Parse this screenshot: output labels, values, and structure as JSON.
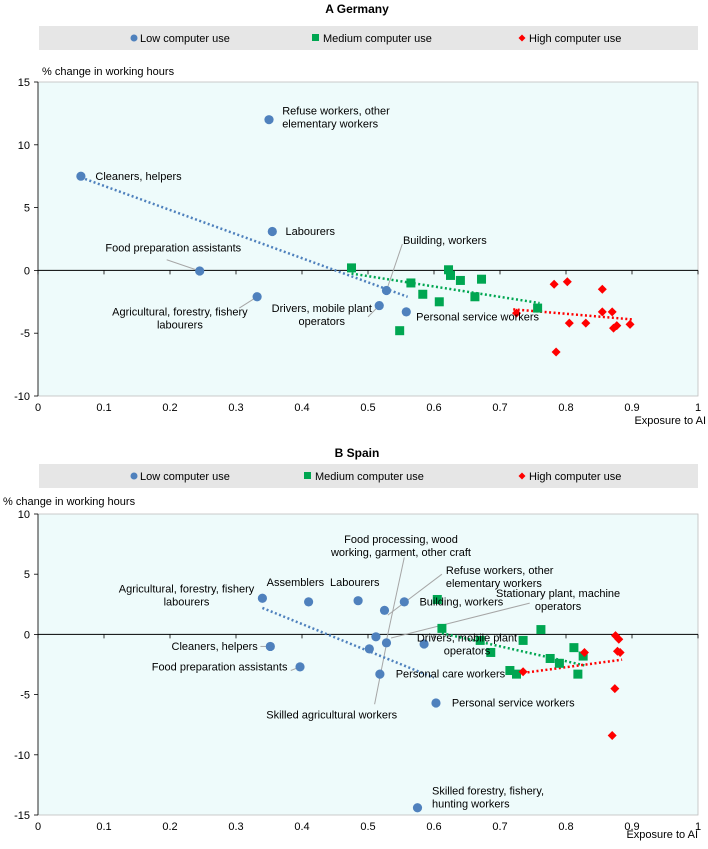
{
  "colors": {
    "low": "#4f81bd",
    "medium": "#00a651",
    "high": "#ff0000",
    "plot_bg": "#eefbfb",
    "legend_bg": "#e6e6e6",
    "leader": "#a6a6a6"
  },
  "legend_labels": {
    "low": "Low computer use",
    "medium": "Medium computer use",
    "high": "High computer use"
  },
  "chart_data": [
    {
      "type": "scatter",
      "panel": "A",
      "title": "A  Germany",
      "ylabel": "% change in working hours",
      "xlabel": "Exposure to AI",
      "xlim": [
        0,
        1
      ],
      "ylim": [
        -10,
        15
      ],
      "xticks": [
        "0",
        "0.1",
        "0.2",
        "0.3",
        "0.4",
        "0.5",
        "0.6",
        "0.7",
        "0.8",
        "0.9",
        "1"
      ],
      "yticks": [
        "15",
        "10",
        "5",
        "0",
        "-5",
        "-10"
      ],
      "series": [
        {
          "name": "Low computer use",
          "group": "low",
          "marker": "circle",
          "points": [
            {
              "x": 0.065,
              "y": 7.5
            },
            {
              "x": 0.35,
              "y": 12.0
            },
            {
              "x": 0.355,
              "y": 3.1
            },
            {
              "x": 0.245,
              "y": -0.05
            },
            {
              "x": 0.332,
              "y": -2.1
            },
            {
              "x": 0.528,
              "y": -1.6
            },
            {
              "x": 0.517,
              "y": -2.8
            },
            {
              "x": 0.558,
              "y": -3.3
            }
          ],
          "trend": [
            [
              0.065,
              7.4
            ],
            [
              0.56,
              -2.1
            ]
          ]
        },
        {
          "name": "Medium computer use",
          "group": "medium",
          "marker": "square",
          "points": [
            {
              "x": 0.475,
              "y": 0.2
            },
            {
              "x": 0.565,
              "y": -1.0
            },
            {
              "x": 0.583,
              "y": -1.9
            },
            {
              "x": 0.608,
              "y": -2.5
            },
            {
              "x": 0.622,
              "y": 0.05
            },
            {
              "x": 0.625,
              "y": -0.4
            },
            {
              "x": 0.64,
              "y": -0.8
            },
            {
              "x": 0.662,
              "y": -2.1
            },
            {
              "x": 0.672,
              "y": -0.7
            },
            {
              "x": 0.548,
              "y": -4.8
            },
            {
              "x": 0.757,
              "y": -3.0
            }
          ],
          "trend": [
            [
              0.475,
              -0.25
            ],
            [
              0.76,
              -2.6
            ]
          ]
        },
        {
          "name": "High computer use",
          "group": "high",
          "marker": "diamond",
          "points": [
            {
              "x": 0.725,
              "y": -3.4
            },
            {
              "x": 0.782,
              "y": -1.1
            },
            {
              "x": 0.802,
              "y": -0.9
            },
            {
              "x": 0.805,
              "y": -4.2
            },
            {
              "x": 0.785,
              "y": -6.5
            },
            {
              "x": 0.83,
              "y": -4.2
            },
            {
              "x": 0.855,
              "y": -1.5
            },
            {
              "x": 0.855,
              "y": -3.3
            },
            {
              "x": 0.87,
              "y": -3.3
            },
            {
              "x": 0.872,
              "y": -4.6
            },
            {
              "x": 0.877,
              "y": -4.4
            },
            {
              "x": 0.897,
              "y": -4.3
            }
          ],
          "trend": [
            [
              0.72,
              -3.1
            ],
            [
              0.9,
              -3.9
            ]
          ]
        }
      ],
      "annotations": [
        {
          "lines": [
            "Refuse workers, other",
            "elementary workers"
          ],
          "anchor": "start",
          "x": 0.37,
          "y": 12.4
        },
        {
          "lines": [
            "Cleaners, helpers"
          ],
          "anchor": "start",
          "x": 0.087,
          "y": 7.2
        },
        {
          "lines": [
            "Labourers"
          ],
          "anchor": "start",
          "x": 0.375,
          "y": 2.8
        },
        {
          "lines": [
            "Food preparation assistants"
          ],
          "anchor": "middle",
          "x": 0.205,
          "y": 1.5
        },
        {
          "lines": [
            "Building, workers"
          ],
          "anchor": "start",
          "x": 0.553,
          "y": 2.1
        },
        {
          "lines": [
            "Agricultural, forestry, fishery",
            "labourers"
          ],
          "anchor": "middle",
          "x": 0.215,
          "y": -3.6
        },
        {
          "lines": [
            "Drivers, mobile plant",
            "operators"
          ],
          "anchor": "middle",
          "x": 0.43,
          "y": -3.3
        },
        {
          "lines": [
            "Personal service workers"
          ],
          "anchor": "start",
          "x": 0.573,
          "y": -4.0
        }
      ],
      "leaders": [
        [
          [
            0.245,
            -0.05
          ],
          [
            0.195,
            0.85
          ]
        ],
        [
          [
            0.332,
            -2.1
          ],
          [
            0.305,
            -3.0
          ]
        ],
        [
          [
            0.528,
            -1.6
          ],
          [
            0.552,
            2.1
          ]
        ],
        [
          [
            0.517,
            -2.8
          ],
          [
            0.5,
            -3.7
          ]
        ]
      ]
    },
    {
      "type": "scatter",
      "panel": "B",
      "title": "B  Spain",
      "ylabel": "% change in working hours",
      "xlabel": "Exposure to AI",
      "xlim": [
        0,
        1
      ],
      "ylim": [
        -15,
        10
      ],
      "xticks": [
        "0",
        "0.1",
        "0.2",
        "0.3",
        "0.4",
        "0.5",
        "0.6",
        "0.7",
        "0.8",
        "0.9",
        "1"
      ],
      "yticks": [
        "10",
        "5",
        "0",
        "-5",
        "-10",
        "-15"
      ],
      "series": [
        {
          "name": "Low computer use",
          "group": "low",
          "marker": "circle",
          "points": [
            {
              "x": 0.34,
              "y": 3.0
            },
            {
              "x": 0.41,
              "y": 2.7
            },
            {
              "x": 0.485,
              "y": 2.8
            },
            {
              "x": 0.525,
              "y": 2.0
            },
            {
              "x": 0.555,
              "y": 2.7
            },
            {
              "x": 0.512,
              "y": -0.2
            },
            {
              "x": 0.528,
              "y": -0.7
            },
            {
              "x": 0.502,
              "y": -1.2
            },
            {
              "x": 0.585,
              "y": -0.8
            },
            {
              "x": 0.352,
              "y": -1.0
            },
            {
              "x": 0.397,
              "y": -2.7
            },
            {
              "x": 0.518,
              "y": -3.3
            },
            {
              "x": 0.603,
              "y": -5.7
            },
            {
              "x": 0.575,
              "y": -14.4
            }
          ],
          "trend": [
            [
              0.34,
              2.2
            ],
            [
              0.6,
              -3.6
            ]
          ]
        },
        {
          "name": "Medium computer use",
          "group": "medium",
          "marker": "square",
          "points": [
            {
              "x": 0.605,
              "y": 2.9
            },
            {
              "x": 0.612,
              "y": 0.5
            },
            {
              "x": 0.67,
              "y": -0.5
            },
            {
              "x": 0.686,
              "y": -1.5
            },
            {
              "x": 0.735,
              "y": -0.5
            },
            {
              "x": 0.762,
              "y": 0.4
            },
            {
              "x": 0.776,
              "y": -2.0
            },
            {
              "x": 0.79,
              "y": -2.4
            },
            {
              "x": 0.812,
              "y": -1.1
            },
            {
              "x": 0.826,
              "y": -1.8
            },
            {
              "x": 0.818,
              "y": -3.3
            },
            {
              "x": 0.715,
              "y": -3.0
            },
            {
              "x": 0.725,
              "y": -3.3
            }
          ],
          "trend": [
            [
              0.612,
              0.1
            ],
            [
              0.83,
              -2.6
            ]
          ]
        },
        {
          "name": "High computer use",
          "group": "high",
          "marker": "diamond",
          "points": [
            {
              "x": 0.735,
              "y": -3.1
            },
            {
              "x": 0.828,
              "y": -1.5
            },
            {
              "x": 0.875,
              "y": -0.1
            },
            {
              "x": 0.88,
              "y": -0.4
            },
            {
              "x": 0.878,
              "y": -1.4
            },
            {
              "x": 0.882,
              "y": -1.5
            },
            {
              "x": 0.874,
              "y": -4.5
            },
            {
              "x": 0.87,
              "y": -8.4
            }
          ],
          "trend": [
            [
              0.735,
              -3.2
            ],
            [
              0.885,
              -2.1
            ]
          ]
        }
      ],
      "annotations": [
        {
          "lines": [
            "Food processing, wood",
            "working, garment, other craft"
          ],
          "anchor": "middle",
          "x": 0.55,
          "y": 7.6
        },
        {
          "lines": [
            "Refuse workers, other",
            "elementary workers"
          ],
          "anchor": "start",
          "x": 0.618,
          "y": 5.0
        },
        {
          "lines": [
            "Agricultural, forestry, fishery",
            "labourers"
          ],
          "anchor": "middle",
          "x": 0.225,
          "y": 3.5
        },
        {
          "lines": [
            "Assemblers"
          ],
          "anchor": "middle",
          "x": 0.39,
          "y": 4.0
        },
        {
          "lines": [
            "Labourers"
          ],
          "anchor": "middle",
          "x": 0.48,
          "y": 4.0
        },
        {
          "lines": [
            "Building, workers"
          ],
          "anchor": "start",
          "x": 0.578,
          "y": 2.4
        },
        {
          "lines": [
            "Stationary plant, machine",
            "operators"
          ],
          "anchor": "middle",
          "x": 0.788,
          "y": 3.1
        },
        {
          "lines": [
            "Drivers, mobile plant",
            "operators"
          ],
          "anchor": "middle",
          "x": 0.65,
          "y": -0.6
        },
        {
          "lines": [
            "Cleaners, helpers"
          ],
          "anchor": "end",
          "x": 0.333,
          "y": -1.3
        },
        {
          "lines": [
            "Food preparation assistants"
          ],
          "anchor": "end",
          "x": 0.378,
          "y": -3.0
        },
        {
          "lines": [
            "Personal care workers"
          ],
          "anchor": "start",
          "x": 0.542,
          "y": -3.6
        },
        {
          "lines": [
            "Personal service workers"
          ],
          "anchor": "start",
          "x": 0.627,
          "y": -6.0
        },
        {
          "lines": [
            "Skilled agricultural workers"
          ],
          "anchor": "middle",
          "x": 0.445,
          "y": -7.0
        },
        {
          "lines": [
            "Skilled forestry, fishery,",
            "hunting workers"
          ],
          "anchor": "start",
          "x": 0.597,
          "y": -13.3
        }
      ],
      "leaders": [
        [
          [
            0.555,
            6.4
          ],
          [
            0.528,
            -0.5
          ]
        ],
        [
          [
            0.612,
            5.0
          ],
          [
            0.53,
            1.6
          ]
        ],
        [
          [
            0.745,
            2.6
          ],
          [
            0.535,
            -0.3
          ]
        ],
        [
          [
            0.528,
            -0.8
          ],
          [
            0.51,
            -5.8
          ]
        ],
        [
          [
            0.352,
            -1.0
          ],
          [
            0.337,
            -1.0
          ]
        ],
        [
          [
            0.397,
            -2.7
          ],
          [
            0.383,
            -3.0
          ]
        ]
      ]
    }
  ]
}
